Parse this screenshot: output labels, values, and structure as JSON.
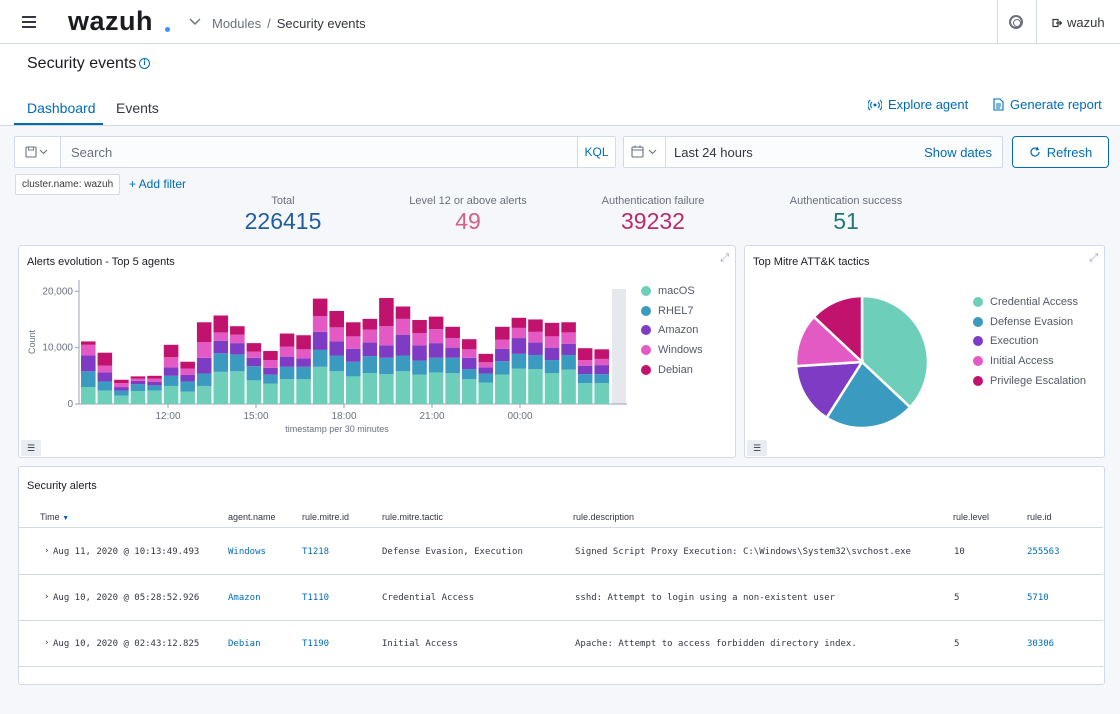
{
  "header": {
    "logo": "wazuh",
    "breadcrumb": [
      "Modules",
      "Security events"
    ],
    "user": "wazuh"
  },
  "page": {
    "title": "Security events",
    "tabs": [
      "Dashboard",
      "Events"
    ],
    "actions": {
      "explore_agent": "Explore agent",
      "generate_report": "Generate report"
    }
  },
  "search": {
    "placeholder": "Search",
    "language": "KQL"
  },
  "timepicker": {
    "value": "Last 24 hours",
    "show_dates": "Show dates"
  },
  "refresh_label": "Refresh",
  "filters": {
    "pill": "cluster.name: wazuh",
    "add_filter": "+ Add filter"
  },
  "metrics": [
    {
      "label": "Total",
      "value": "226415",
      "color": "#1f5e9e"
    },
    {
      "label": "Level 12 or above alerts",
      "value": "49",
      "color": "#d36086"
    },
    {
      "label": "Authentication failure",
      "value": "39232",
      "color": "#bd2a6b"
    },
    {
      "label": "Authentication success",
      "value": "51",
      "color": "#217a77"
    }
  ],
  "colors": {
    "macOS": "#6dcfb9",
    "RHEL7": "#3b9ac0",
    "Amazon": "#7e3bc4",
    "Windows": "#e35ac4",
    "Debian": "#c1136e"
  },
  "alerts_chart": {
    "title": "Alerts evolution - Top 5 agents",
    "chart_data": {
      "type": "bar",
      "stacked": true,
      "ylabel": "Count",
      "xlabel": "timestamp per 30 minutes",
      "yticks": [
        "0",
        "10,000",
        "20,000"
      ],
      "ylim": [
        0,
        22000
      ],
      "xticks": [
        "12:00",
        "15:00",
        "18:00",
        "21:00",
        "00:00"
      ],
      "series_order": [
        "macOS",
        "RHEL7",
        "Amazon",
        "Windows",
        "Debian"
      ],
      "bars": [
        [
          3000,
          2800,
          2800,
          1900,
          600
        ],
        [
          2400,
          1600,
          1600,
          1200,
          2300
        ],
        [
          1500,
          900,
          600,
          700,
          600
        ],
        [
          2300,
          1200,
          600,
          400,
          400
        ],
        [
          2400,
          900,
          600,
          600,
          500
        ],
        [
          3200,
          1800,
          1500,
          1800,
          2200
        ],
        [
          2200,
          1800,
          1200,
          1100,
          1200
        ],
        [
          3200,
          2200,
          2800,
          2800,
          3500
        ],
        [
          5700,
          3300,
          2200,
          1500,
          3000
        ],
        [
          5800,
          3000,
          2000,
          1500,
          1500
        ],
        [
          4200,
          2500,
          1500,
          1100,
          1500
        ],
        [
          3600,
          1600,
          1200,
          1400,
          1600
        ],
        [
          4400,
          2200,
          1800,
          1800,
          2300
        ],
        [
          4400,
          2200,
          1500,
          1600,
          2500
        ],
        [
          6600,
          3000,
          3200,
          2800,
          3100
        ],
        [
          5800,
          2800,
          2500,
          2500,
          2900
        ],
        [
          4900,
          2600,
          2300,
          2200,
          2500
        ],
        [
          5500,
          3000,
          2400,
          2300,
          1900
        ],
        [
          5300,
          2900,
          2200,
          3400,
          5000
        ],
        [
          5800,
          2800,
          3700,
          2800,
          2200
        ],
        [
          5200,
          2500,
          2700,
          2200,
          2300
        ],
        [
          5600,
          2600,
          2600,
          2500,
          2200
        ],
        [
          5500,
          2700,
          1800,
          1700,
          2000
        ],
        [
          4400,
          1800,
          2000,
          1500,
          1800
        ],
        [
          3800,
          1600,
          1100,
          900,
          1500
        ],
        [
          5200,
          2400,
          2200,
          1600,
          2300
        ],
        [
          6300,
          2600,
          2800,
          1800,
          1800
        ],
        [
          6200,
          2500,
          2200,
          1900,
          2200
        ],
        [
          5500,
          2300,
          2200,
          2000,
          2400
        ],
        [
          6100,
          2600,
          2000,
          2000,
          1800
        ],
        [
          3700,
          1600,
          1500,
          1000,
          2100
        ],
        [
          3700,
          1600,
          1600,
          1100,
          1700
        ]
      ]
    }
  },
  "mitre_chart": {
    "title": "Top Mitre ATT&K tactics",
    "chart_data": {
      "type": "pie",
      "labels": [
        "Credential Access",
        "Defense Evasion",
        "Execution",
        "Initial Access",
        "Privilege Escalation"
      ],
      "values": [
        37,
        22,
        15,
        13,
        13
      ],
      "colors": [
        "#6dcfb9",
        "#3b9ac0",
        "#7e3bc4",
        "#e35ac4",
        "#c1136e"
      ]
    }
  },
  "alerts_table": {
    "title": "Security alerts",
    "columns": [
      "Time",
      "agent.name",
      "rule.mitre.id",
      "rule.mitre.tactic",
      "rule.description",
      "rule.level",
      "rule.id"
    ],
    "rows": [
      [
        "Aug 11, 2020 @ 10:13:49.493",
        "Windows",
        "T1218",
        "Defense Evasion, Execution",
        "Signed Script Proxy Execution: C:\\Windows\\System32\\svchost.exe",
        "10",
        "255563"
      ],
      [
        "Aug 10, 2020 @ 05:28:52.926",
        "Amazon",
        "T1110",
        "Credential Access",
        "sshd: Attempt to login using a non-existent user",
        "5",
        "5710"
      ],
      [
        "Aug 10, 2020 @ 02:43:12.825",
        "Debian",
        "T1190",
        "Initial Access",
        "Apache: Attempt to access forbidden directory index.",
        "5",
        "30306"
      ]
    ]
  }
}
